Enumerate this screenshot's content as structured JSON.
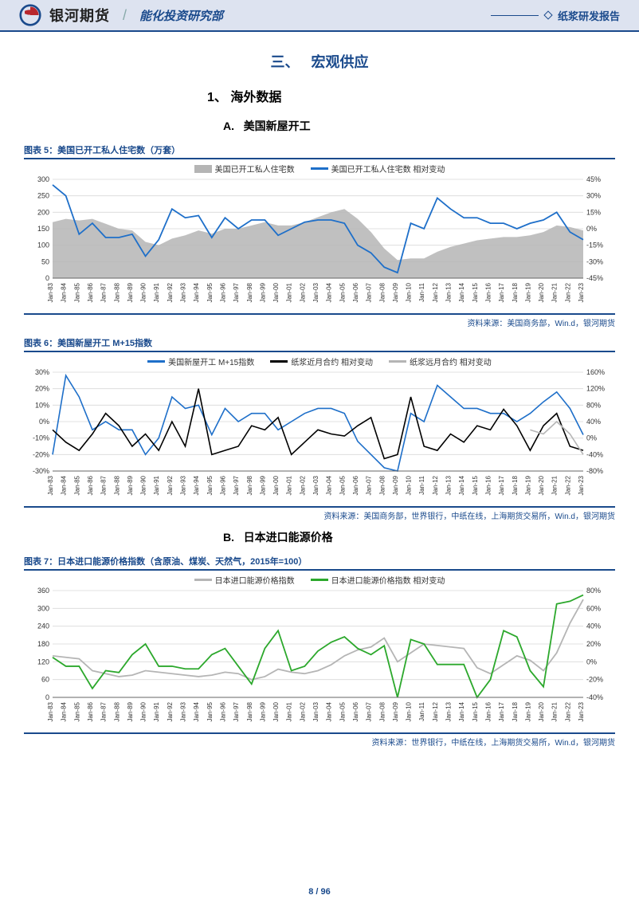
{
  "header": {
    "company": "银河期货",
    "department": "能化投资研究部",
    "report_type": "纸浆研发报告",
    "logo_colors": {
      "outer": "#1a4a8c",
      "inner": "#b8272d"
    }
  },
  "section": {
    "number": "三、",
    "title": "宏观供应"
  },
  "subsection": {
    "number": "1、",
    "title": "海外数据"
  },
  "subA": {
    "letter": "A.",
    "title": "美国新屋开工"
  },
  "subB": {
    "letter": "B.",
    "title": "日本进口能源价格"
  },
  "chart5": {
    "label": "图表 5：美国已开工私人住宅数（万套）",
    "type": "area+line",
    "legend": [
      {
        "name": "美国已开工私人住宅数",
        "color": "#b5b5b5",
        "style": "area"
      },
      {
        "name": "美国已开工私人住宅数 相对变动",
        "color": "#1e6fc9",
        "style": "line"
      }
    ],
    "x_labels": [
      "Jan-83",
      "Jan-84",
      "Jan-85",
      "Jan-86",
      "Jan-87",
      "Jan-88",
      "Jan-89",
      "Jan-90",
      "Jan-91",
      "Jan-92",
      "Jan-93",
      "Jan-94",
      "Jan-95",
      "Jan-96",
      "Jan-97",
      "Jan-98",
      "Jan-99",
      "Jan-00",
      "Jan-01",
      "Jan-02",
      "Jan-03",
      "Jan-04",
      "Jan-05",
      "Jan-06",
      "Jan-07",
      "Jan-08",
      "Jan-09",
      "Jan-10",
      "Jan-11",
      "Jan-12",
      "Jan-13",
      "Jan-14",
      "Jan-15",
      "Jan-16",
      "Jan-17",
      "Jan-18",
      "Jan-19",
      "Jan-20",
      "Jan-21",
      "Jan-22",
      "Jan-23"
    ],
    "y_left": {
      "min": 0,
      "max": 300,
      "step": 50,
      "label": ""
    },
    "y_right": {
      "min": -45,
      "max": 45,
      "step": 15,
      "label": "%",
      "ticks": [
        -45,
        -30,
        -15,
        0,
        15,
        30,
        45
      ]
    },
    "area_values": [
      170,
      180,
      175,
      180,
      165,
      150,
      145,
      110,
      100,
      120,
      130,
      145,
      135,
      150,
      150,
      160,
      170,
      160,
      160,
      170,
      185,
      200,
      210,
      180,
      140,
      90,
      55,
      60,
      60,
      80,
      95,
      105,
      115,
      120,
      125,
      125,
      130,
      140,
      160,
      155,
      145
    ],
    "line_values": [
      40,
      30,
      -5,
      5,
      -8,
      -8,
      -5,
      -25,
      -10,
      18,
      10,
      12,
      -8,
      10,
      0,
      8,
      8,
      -6,
      0,
      6,
      8,
      8,
      5,
      -15,
      -22,
      -35,
      -40,
      5,
      0,
      28,
      18,
      10,
      10,
      5,
      5,
      0,
      5,
      8,
      15,
      -3,
      -10
    ],
    "area_color": "#b5b5b5",
    "line_color": "#1e6fc9",
    "line_width": 1.8,
    "grid_color": "#d9d9d9",
    "background": "#ffffff",
    "source": "资料来源：美国商务部，Win.d，银河期货"
  },
  "chart6": {
    "label": "图表 6：美国新屋开工 M+15指数",
    "type": "multi-line",
    "legend": [
      {
        "name": "美国新屋开工 M+15指数",
        "color": "#1e6fc9",
        "style": "line"
      },
      {
        "name": "纸浆近月合约 相对变动",
        "color": "#000000",
        "style": "line"
      },
      {
        "name": "纸浆远月合约 相对变动",
        "color": "#b5b5b5",
        "style": "line"
      }
    ],
    "x_labels": [
      "Jan-83",
      "Jan-84",
      "Jan-85",
      "Jan-86",
      "Jan-87",
      "Jan-88",
      "Jan-89",
      "Jan-90",
      "Jan-91",
      "Jan-92",
      "Jan-93",
      "Jan-94",
      "Jan-95",
      "Jan-96",
      "Jan-97",
      "Jan-98",
      "Jan-99",
      "Jan-00",
      "Jan-01",
      "Jan-02",
      "Jan-03",
      "Jan-04",
      "Jan-05",
      "Jan-06",
      "Jan-07",
      "Jan-08",
      "Jan-09",
      "Jan-10",
      "Jan-11",
      "Jan-12",
      "Jan-13",
      "Jan-14",
      "Jan-15",
      "Jan-16",
      "Jan-17",
      "Jan-18",
      "Jan-19",
      "Jan-20",
      "Jan-21",
      "Jan-22",
      "Jan-23"
    ],
    "y_left": {
      "min": -30,
      "max": 30,
      "step": 10,
      "ticks": [
        -30,
        -20,
        -10,
        0,
        10,
        20,
        30
      ],
      "label": "%"
    },
    "y_right": {
      "min": -80,
      "max": 160,
      "step": 40,
      "ticks": [
        -80,
        -40,
        0,
        40,
        80,
        120,
        160
      ],
      "label": "%"
    },
    "blue_values": [
      -20,
      28,
      15,
      -5,
      0,
      -5,
      -5,
      -20,
      -10,
      15,
      8,
      10,
      -8,
      8,
      0,
      5,
      5,
      -5,
      0,
      5,
      8,
      8,
      5,
      -12,
      -20,
      -28,
      -30,
      5,
      0,
      22,
      15,
      8,
      8,
      5,
      5,
      0,
      5,
      12,
      18,
      8,
      -8
    ],
    "black_values": [
      20,
      -10,
      -30,
      10,
      60,
      30,
      -20,
      10,
      -30,
      40,
      -20,
      120,
      -40,
      -30,
      -20,
      30,
      20,
      50,
      -40,
      -10,
      20,
      10,
      5,
      30,
      50,
      -50,
      -40,
      100,
      -20,
      -30,
      10,
      -10,
      30,
      20,
      70,
      30,
      -30,
      30,
      60,
      -20,
      -30
    ],
    "gray_values": [
      null,
      null,
      null,
      null,
      null,
      null,
      null,
      null,
      null,
      null,
      null,
      null,
      null,
      null,
      null,
      null,
      null,
      null,
      null,
      null,
      null,
      null,
      null,
      null,
      null,
      null,
      null,
      null,
      null,
      null,
      null,
      null,
      null,
      null,
      null,
      null,
      20,
      10,
      40,
      10,
      -40
    ],
    "colors": {
      "blue": "#1e6fc9",
      "black": "#000000",
      "gray": "#b5b5b5"
    },
    "line_width": 1.6,
    "grid_color": "#d9d9d9",
    "background": "#ffffff",
    "source": "资料来源：美国商务部，世界银行，中纸在线，上海期货交易所，Win.d，银河期货"
  },
  "chart7": {
    "label": "图表 7：日本进口能源价格指数（含原油、煤炭、天然气，2015年=100）",
    "type": "multi-line",
    "legend": [
      {
        "name": "日本进口能源价格指数",
        "color": "#b5b5b5",
        "style": "line"
      },
      {
        "name": "日本进口能源价格指数 相对变动",
        "color": "#2ca82c",
        "style": "line"
      }
    ],
    "x_labels": [
      "Jan-83",
      "Jan-84",
      "Jan-85",
      "Jan-86",
      "Jan-87",
      "Jan-88",
      "Jan-89",
      "Jan-90",
      "Jan-91",
      "Jan-92",
      "Jan-93",
      "Jan-94",
      "Jan-95",
      "Jan-96",
      "Jan-97",
      "Jan-98",
      "Jan-99",
      "Jan-00",
      "Jan-01",
      "Jan-02",
      "Jan-03",
      "Jan-04",
      "Jan-05",
      "Jan-06",
      "Jan-07",
      "Jan-08",
      "Jan-09",
      "Jan-10",
      "Jan-11",
      "Jan-12",
      "Jan-13",
      "Jan-14",
      "Jan-15",
      "Jan-16",
      "Jan-17",
      "Jan-18",
      "Jan-19",
      "Jan-20",
      "Jan-21",
      "Jan-22",
      "Jan-23"
    ],
    "y_left": {
      "min": 0,
      "max": 360,
      "step": 60,
      "ticks": [
        0,
        60,
        120,
        180,
        240,
        300,
        360
      ],
      "label": ""
    },
    "y_right": {
      "min": -40,
      "max": 80,
      "step": 20,
      "ticks": [
        -40,
        -20,
        0,
        20,
        40,
        60,
        80
      ],
      "label": "%"
    },
    "gray_values": [
      140,
      135,
      130,
      90,
      80,
      70,
      75,
      90,
      85,
      80,
      75,
      70,
      75,
      85,
      80,
      60,
      70,
      95,
      85,
      80,
      90,
      110,
      140,
      160,
      170,
      200,
      120,
      150,
      180,
      175,
      170,
      165,
      100,
      80,
      110,
      140,
      125,
      90,
      150,
      250,
      330
    ],
    "green_values": [
      5,
      -5,
      -5,
      -30,
      -10,
      -12,
      8,
      20,
      -5,
      -5,
      -8,
      -8,
      8,
      15,
      -5,
      -25,
      15,
      35,
      -10,
      -5,
      12,
      22,
      28,
      15,
      8,
      18,
      -40,
      25,
      20,
      -3,
      -3,
      -3,
      -40,
      -20,
      35,
      28,
      -10,
      -28,
      65,
      68,
      75
    ],
    "colors": {
      "gray": "#b5b5b5",
      "green": "#2ca82c"
    },
    "line_width": 1.8,
    "grid_color": "#d9d9d9",
    "background": "#ffffff",
    "source": "资料来源：世界银行，中纸在线，上海期货交易所，Win.d，银河期货"
  },
  "footer": {
    "page": "8",
    "sep": "/",
    "total": "96"
  }
}
